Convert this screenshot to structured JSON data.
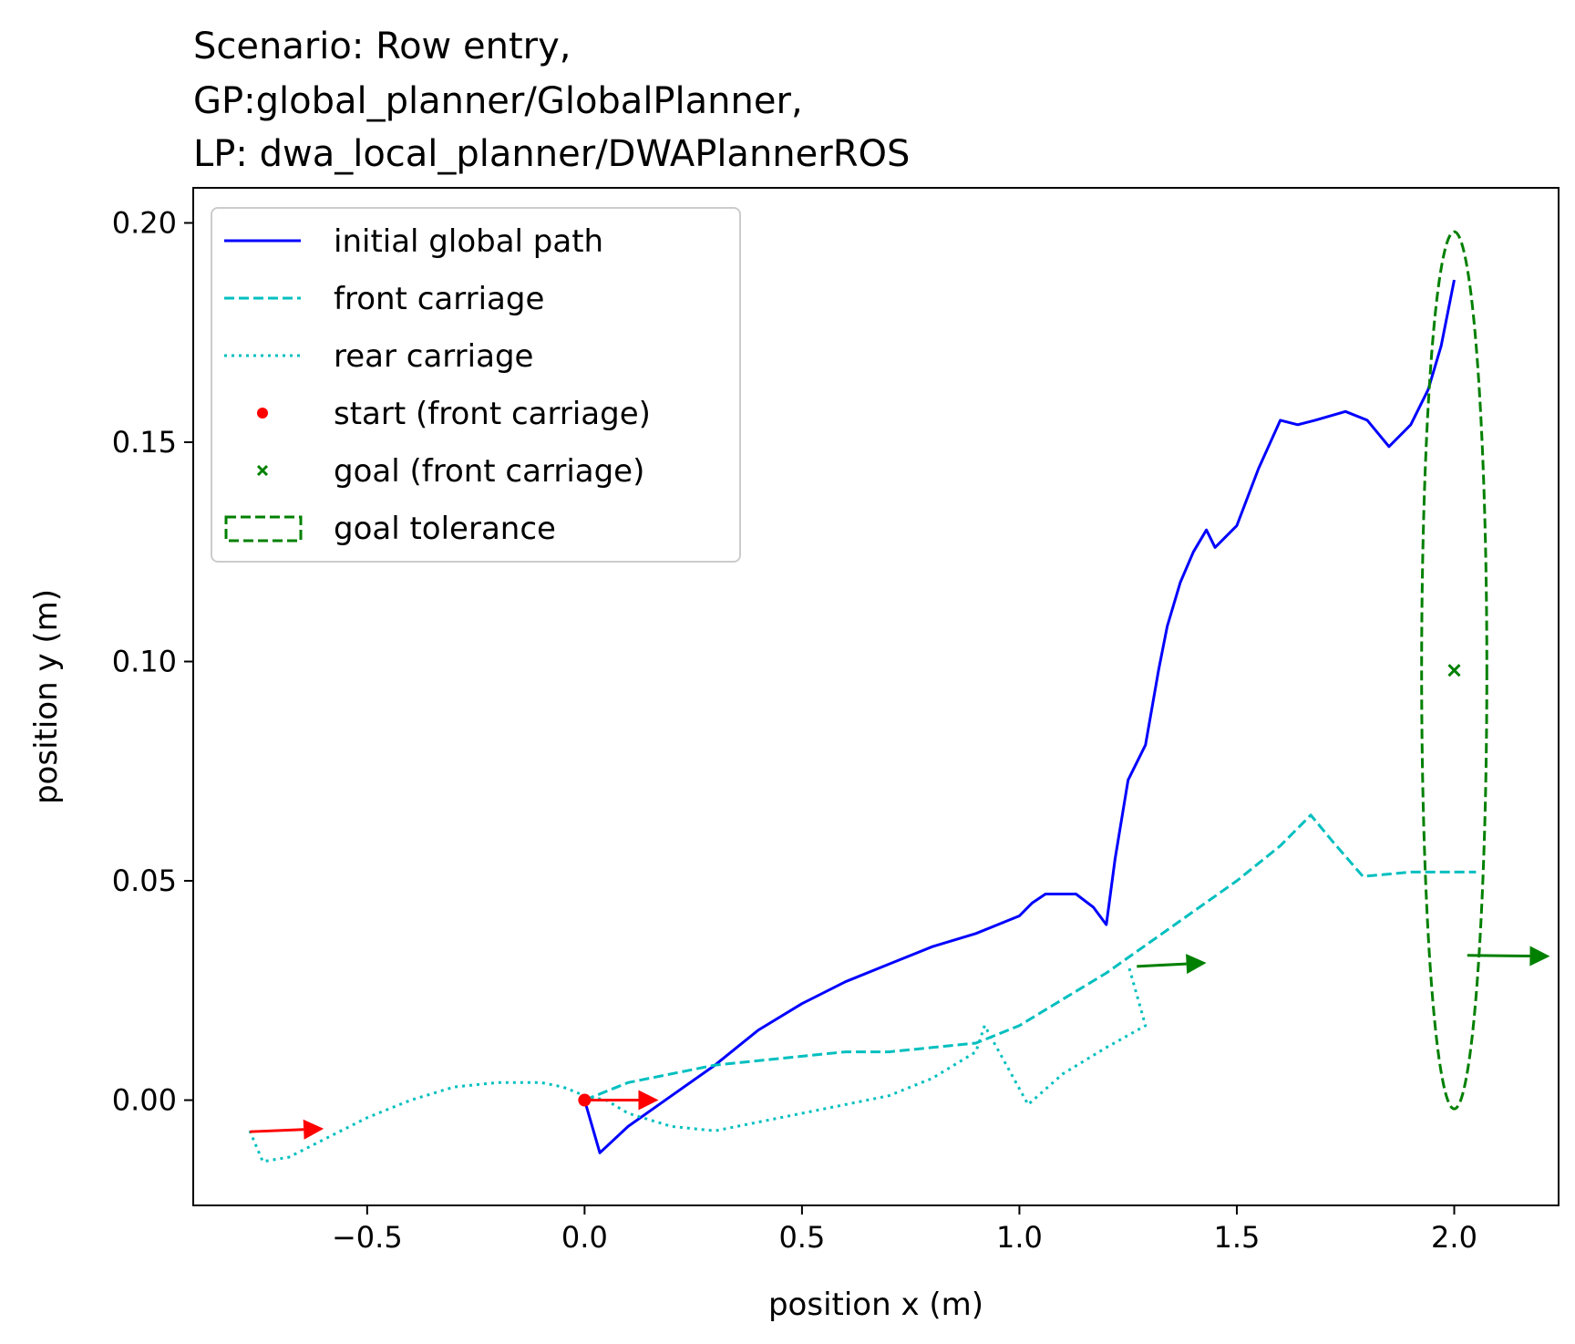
{
  "chart_data": {
    "type": "line",
    "title": [
      "Scenario: Row entry,",
      "GP:global_planner/GlobalPlanner,",
      "LP: dwa_local_planner/DWAPlannerROS"
    ],
    "xlabel": "position x (m)",
    "ylabel": "position y (m)",
    "xlim": [
      -0.9,
      2.24
    ],
    "ylim": [
      -0.024,
      0.208
    ],
    "xticks": [
      -0.5,
      0.0,
      0.5,
      1.0,
      1.5,
      2.0
    ],
    "xtick_labels": [
      "−0.5",
      "0.0",
      "0.5",
      "1.0",
      "1.5",
      "2.0"
    ],
    "yticks": [
      0.0,
      0.05,
      0.1,
      0.15,
      0.2
    ],
    "ytick_labels": [
      "0.00",
      "0.05",
      "0.10",
      "0.15",
      "0.20"
    ],
    "grid": false,
    "legend_position": "top-left",
    "series": [
      {
        "name": "initial global path",
        "color": "#0000ff",
        "style": "solid",
        "x": [
          0.0,
          0.035,
          0.1,
          0.2,
          0.3,
          0.35,
          0.4,
          0.5,
          0.6,
          0.7,
          0.8,
          0.9,
          1.0,
          1.03,
          1.06,
          1.08,
          1.13,
          1.17,
          1.2,
          1.22,
          1.25,
          1.29,
          1.32,
          1.34,
          1.37,
          1.4,
          1.43,
          1.45,
          1.5,
          1.55,
          1.6,
          1.64,
          1.68,
          1.75,
          1.8,
          1.85,
          1.9,
          1.94,
          1.97,
          2.0
        ],
        "y": [
          0.0,
          -0.012,
          -0.006,
          0.001,
          0.008,
          0.012,
          0.016,
          0.022,
          0.027,
          0.031,
          0.035,
          0.038,
          0.042,
          0.045,
          0.047,
          0.047,
          0.047,
          0.044,
          0.04,
          0.055,
          0.073,
          0.081,
          0.098,
          0.108,
          0.118,
          0.125,
          0.13,
          0.126,
          0.131,
          0.144,
          0.155,
          0.154,
          0.155,
          0.157,
          0.155,
          0.149,
          0.154,
          0.162,
          0.172,
          0.187
        ]
      },
      {
        "name": "front carriage",
        "color": "#00bfbf",
        "style": "dashed",
        "x": [
          0.0,
          0.05,
          0.1,
          0.2,
          0.3,
          0.4,
          0.5,
          0.6,
          0.7,
          0.8,
          0.9,
          1.0,
          1.1,
          1.2,
          1.3,
          1.4,
          1.5,
          1.6,
          1.67,
          1.72,
          1.79,
          1.9,
          2.0,
          2.05
        ],
        "y": [
          0.0,
          0.002,
          0.004,
          0.006,
          0.008,
          0.009,
          0.01,
          0.011,
          0.011,
          0.012,
          0.013,
          0.017,
          0.023,
          0.029,
          0.036,
          0.043,
          0.05,
          0.058,
          0.065,
          0.059,
          0.051,
          0.052,
          0.052,
          0.052
        ]
      },
      {
        "name": "rear carriage",
        "color": "#00bfbf",
        "style": "dotted",
        "x": [
          -0.77,
          -0.74,
          -0.68,
          -0.6,
          -0.5,
          -0.4,
          -0.3,
          -0.2,
          -0.1,
          -0.05,
          0.0,
          0.05,
          0.1,
          0.2,
          0.3,
          0.35,
          0.4,
          0.5,
          0.6,
          0.7,
          0.8,
          0.9,
          0.92,
          1.02,
          1.1,
          1.2,
          1.29,
          1.25
        ],
        "y": [
          -0.007,
          -0.014,
          -0.013,
          -0.009,
          -0.004,
          0.0,
          0.003,
          0.004,
          0.004,
          0.003,
          0.001,
          0.0,
          -0.003,
          -0.006,
          -0.007,
          -0.006,
          -0.005,
          -0.003,
          -0.001,
          0.001,
          0.005,
          0.011,
          0.017,
          -0.001,
          0.006,
          0.012,
          0.017,
          0.031
        ]
      }
    ],
    "markers": [
      {
        "name": "start (front carriage)",
        "shape": "dot",
        "color": "#ff0000",
        "x": 0.0,
        "y": 0.0
      },
      {
        "name": "goal (front carriage)",
        "shape": "x",
        "color": "#008000",
        "x": 2.0,
        "y": 0.098
      }
    ],
    "ellipse": {
      "name": "goal tolerance",
      "color": "#008000",
      "cx": 2.0,
      "cy": 0.098,
      "rx": 0.075,
      "ry": 0.1
    },
    "arrows": [
      {
        "color": "#ff0000",
        "x": -0.77,
        "y": -0.0072,
        "dx": 0.17,
        "dy": 0.0007
      },
      {
        "color": "#ff0000",
        "x": 0.0,
        "y": 0.0,
        "dx": 0.17,
        "dy": 0.0
      },
      {
        "color": "#008000",
        "x": 1.27,
        "y": 0.0305,
        "dx": 0.16,
        "dy": 0.0008
      },
      {
        "color": "#008000",
        "x": 2.03,
        "y": 0.033,
        "dx": 0.19,
        "dy": -0.0002
      }
    ]
  }
}
